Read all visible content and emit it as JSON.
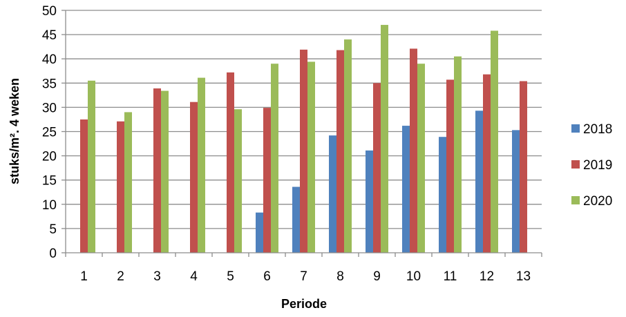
{
  "chart_data": {
    "type": "bar",
    "title": "",
    "xlabel": "Periode",
    "ylabel": "stuks/m². 4 weken",
    "ylim": [
      0,
      50
    ],
    "yticks": [
      0,
      5,
      10,
      15,
      20,
      25,
      30,
      35,
      40,
      45,
      50
    ],
    "grid": true,
    "legend_position": "right",
    "categories": [
      "1",
      "2",
      "3",
      "4",
      "5",
      "6",
      "7",
      "8",
      "9",
      "10",
      "11",
      "12",
      "13"
    ],
    "series": [
      {
        "name": "2018",
        "color": "#4f81bd",
        "values": [
          null,
          null,
          null,
          null,
          null,
          8.3,
          13.6,
          24.2,
          21.1,
          26.2,
          23.9,
          29.3,
          25.3
        ]
      },
      {
        "name": "2019",
        "color": "#c0504d",
        "values": [
          27.5,
          27.1,
          33.9,
          31.1,
          37.2,
          29.9,
          41.9,
          41.8,
          35.0,
          42.1,
          35.7,
          36.8,
          35.4
        ]
      },
      {
        "name": "2020",
        "color": "#9bbb59",
        "values": [
          35.5,
          29.0,
          33.4,
          36.1,
          29.6,
          39.0,
          39.4,
          44.0,
          47.0,
          39.0,
          40.5,
          45.8,
          null
        ]
      }
    ]
  }
}
